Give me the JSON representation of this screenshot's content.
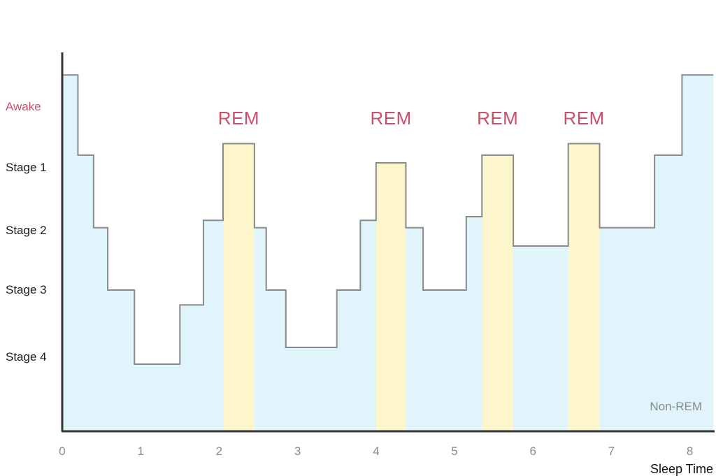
{
  "chart_data": {
    "type": "area",
    "title": "",
    "xlabel": "Sleep Time",
    "ylabel": "",
    "x_ticks": [
      "0",
      "1",
      "2",
      "3",
      "4",
      "5",
      "6",
      "7",
      "8"
    ],
    "xlim": [
      0,
      8.3
    ],
    "y_categories": [
      "Awake",
      "Stage 1",
      "Stage 2",
      "Stage 3",
      "Stage 4"
    ],
    "colors": {
      "non_rem_fill": "#dff5fb",
      "rem_fill": "#fdf6cc",
      "line": "#8a8a8a",
      "axis": "#333333",
      "awake_label": "#c9506a",
      "rem_label": "#c9506a"
    },
    "hypnogram": [
      {
        "x": 0.0,
        "level": 4.8
      },
      {
        "x": 0.2,
        "level": 3.8
      },
      {
        "x": 0.4,
        "level": 2.85
      },
      {
        "x": 0.58,
        "level": 2.0
      },
      {
        "x": 0.92,
        "level": 1.0
      },
      {
        "x": 1.5,
        "level": 1.8
      },
      {
        "x": 1.8,
        "level": 2.95
      },
      {
        "x": 2.05,
        "level": 3.95
      },
      {
        "x": 2.45,
        "level": 2.85
      },
      {
        "x": 2.6,
        "level": 2.0
      },
      {
        "x": 2.85,
        "level": 0.75
      },
      {
        "x": 3.5,
        "level": 2.0
      },
      {
        "x": 3.8,
        "level": 2.95
      },
      {
        "x": 4.0,
        "level": 3.7
      },
      {
        "x": 4.38,
        "level": 2.85
      },
      {
        "x": 4.6,
        "level": 2.0
      },
      {
        "x": 5.15,
        "level": 3.0
      },
      {
        "x": 5.35,
        "level": 3.8
      },
      {
        "x": 5.75,
        "level": 2.6
      },
      {
        "x": 6.45,
        "level": 3.95
      },
      {
        "x": 6.85,
        "level": 2.85
      },
      {
        "x": 7.55,
        "level": 3.8
      },
      {
        "x": 7.9,
        "level": 4.8
      },
      {
        "x": 8.3,
        "level": 4.8
      }
    ],
    "rem_periods": [
      {
        "start": 2.05,
        "end": 2.45,
        "label": "REM"
      },
      {
        "start": 4.0,
        "end": 4.38,
        "label": "REM"
      },
      {
        "start": 5.35,
        "end": 5.75,
        "label": "REM"
      },
      {
        "start": 6.45,
        "end": 6.85,
        "label": "REM"
      }
    ],
    "annotation": "Non-REM"
  }
}
